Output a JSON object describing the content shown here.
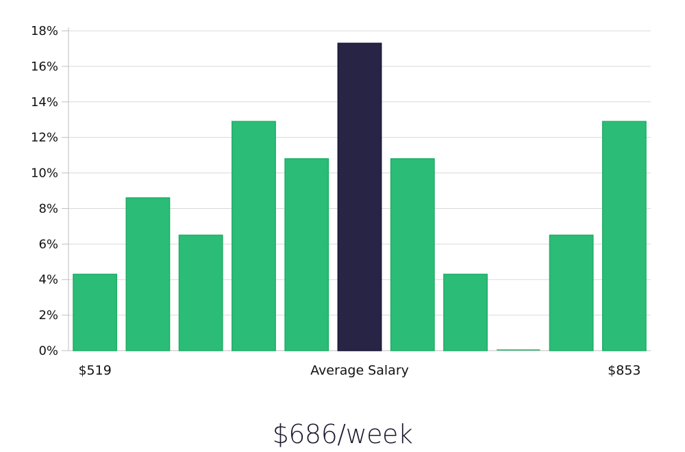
{
  "chart_data": {
    "type": "bar",
    "categories": [
      "$519",
      "",
      "",
      "",
      "",
      "Average Salary",
      "",
      "",
      "",
      "",
      "$853"
    ],
    "values": [
      4.3,
      8.6,
      6.5,
      12.9,
      10.8,
      17.3,
      10.8,
      4.3,
      0,
      6.5,
      12.9
    ],
    "highlight_index": 5,
    "ylim": [
      0,
      18
    ],
    "yticks": [
      0,
      2,
      4,
      6,
      8,
      10,
      12,
      14,
      16,
      18
    ],
    "ytick_labels": [
      "0%",
      "2%",
      "4%",
      "6%",
      "8%",
      "10%",
      "12%",
      "14%",
      "16%",
      "18%"
    ],
    "grid": true,
    "colors": {
      "bar": "#2bbd77",
      "bar_edge": "#1fae66",
      "highlight": "#272445",
      "highlight_edge": "#191737",
      "grid": "#d9d9d9",
      "axis": "#bfbfbf",
      "text": "#111111"
    }
  },
  "headline": "$686/week"
}
